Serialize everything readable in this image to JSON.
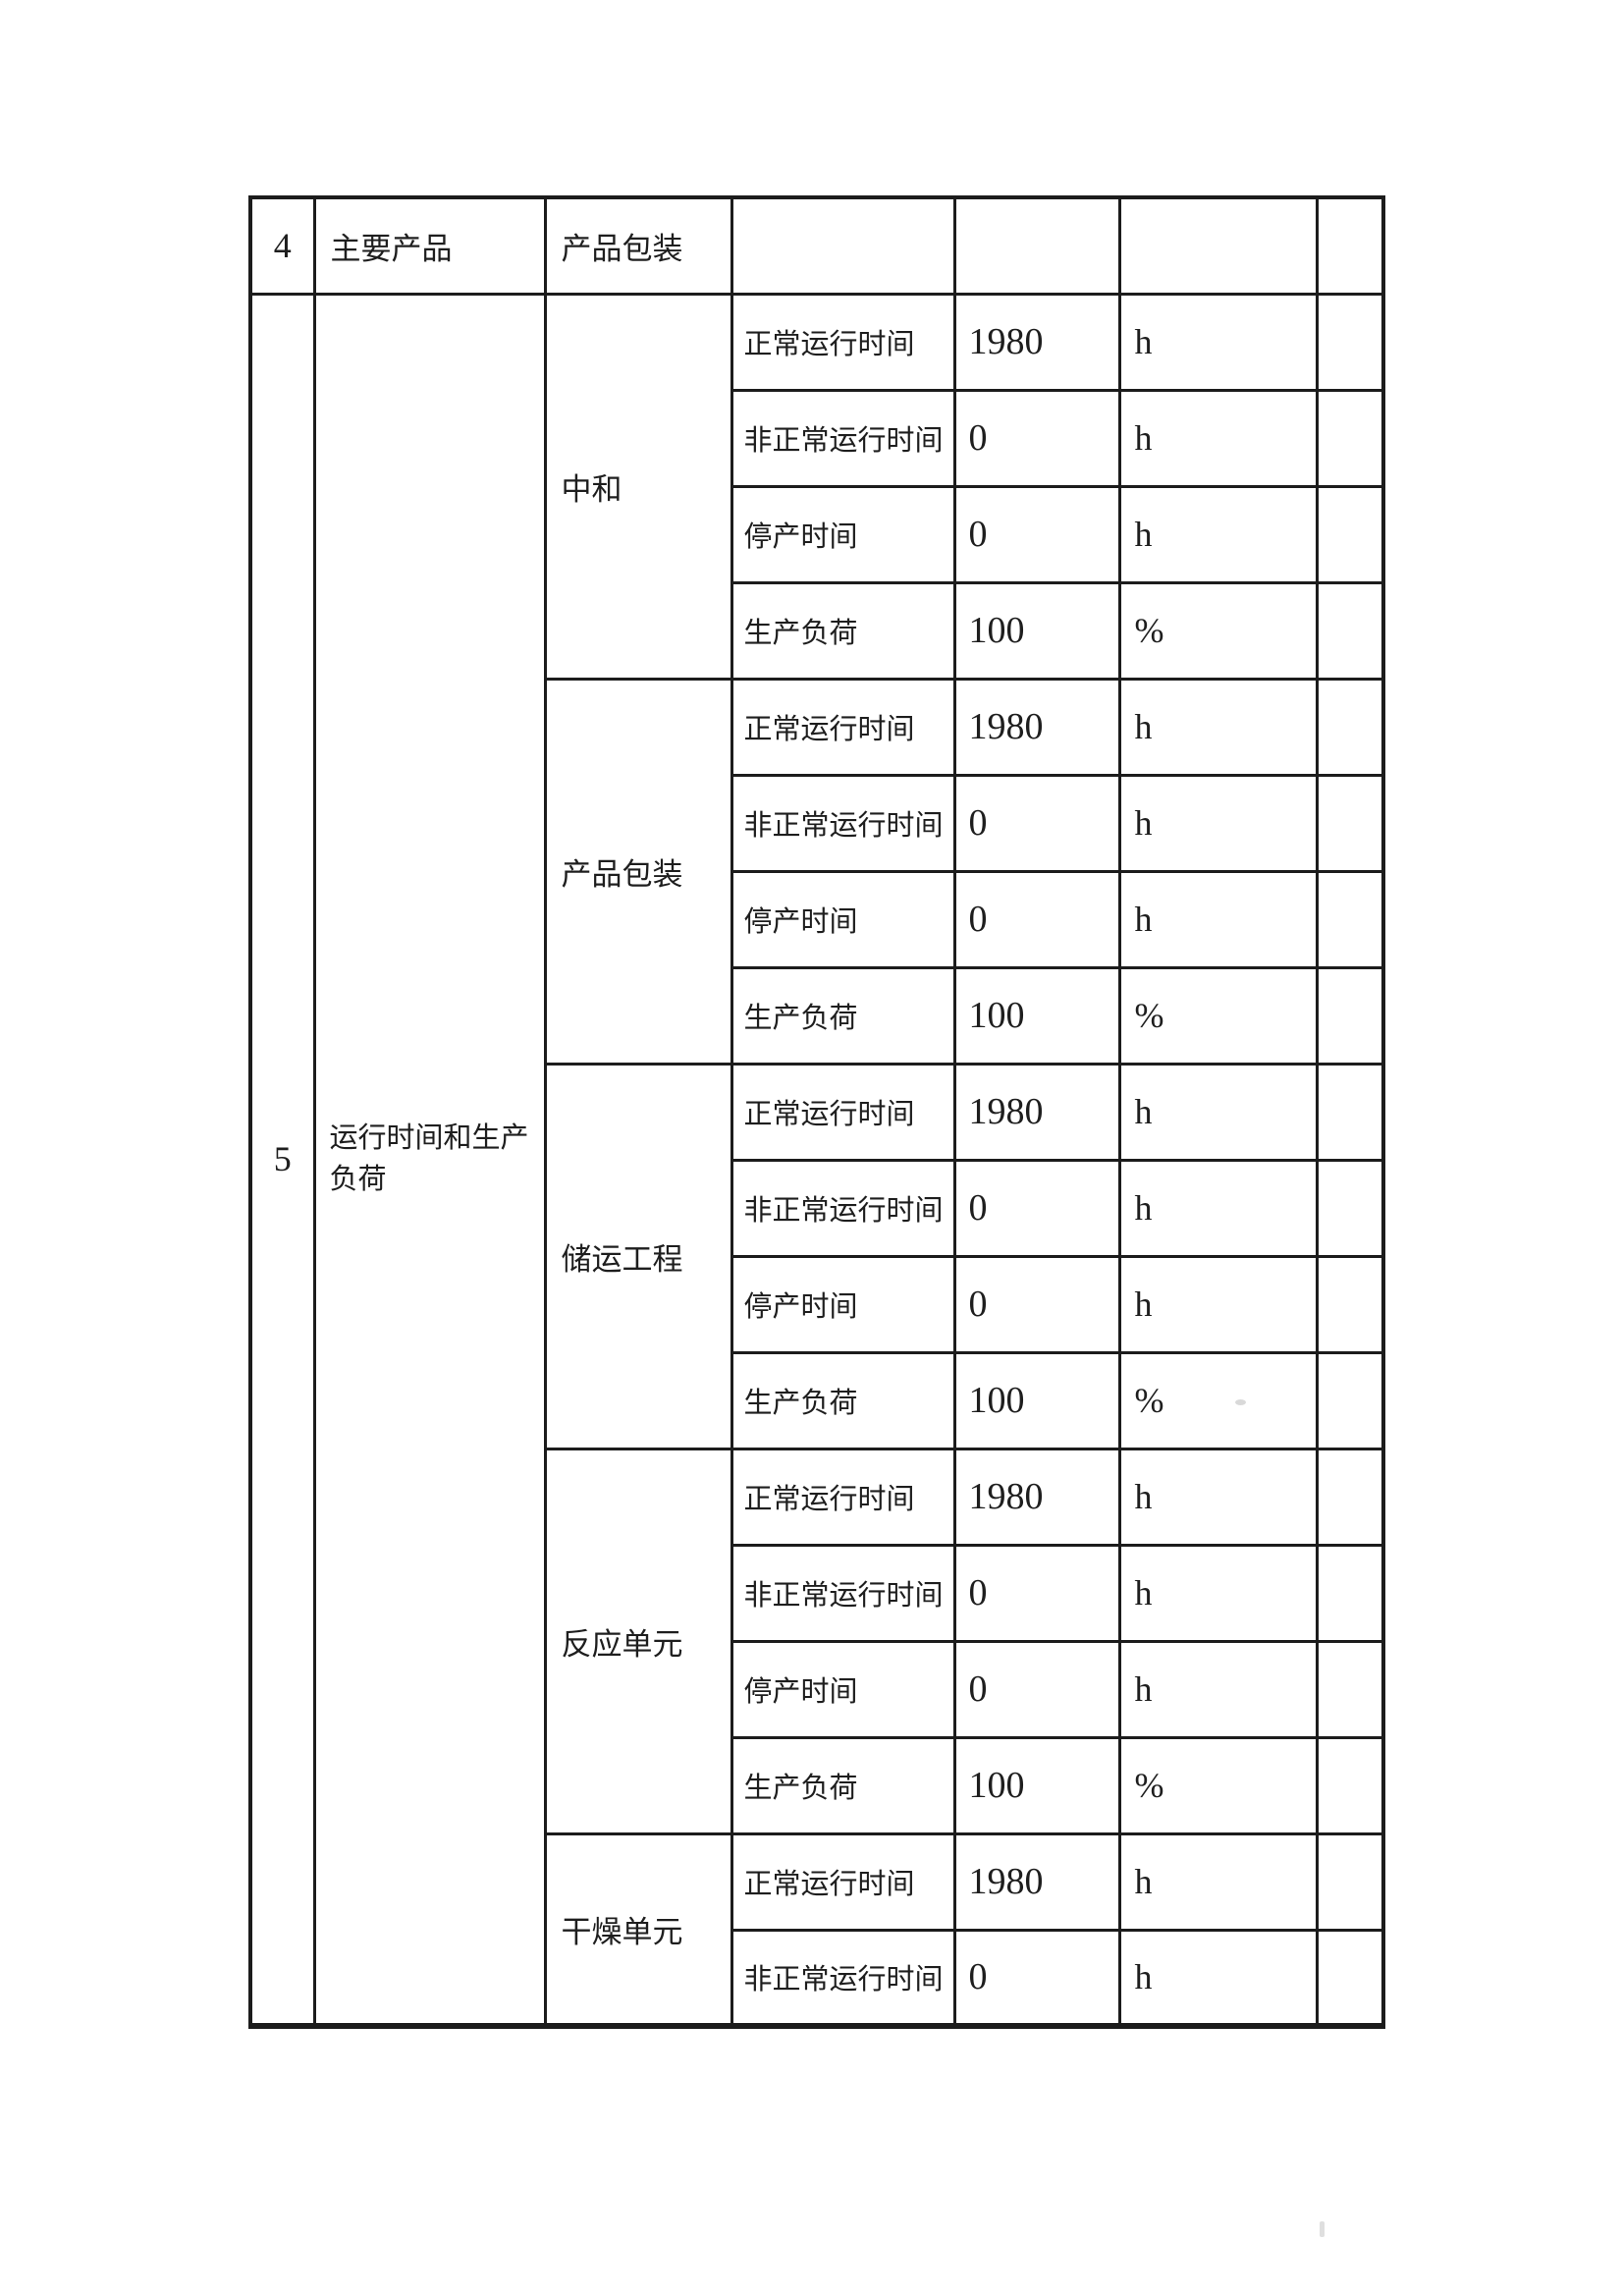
{
  "colors": {
    "page_background": "#ffffff",
    "ink": "#1e1e1e",
    "table_border": "#1c1c1c"
  },
  "table": {
    "row4": {
      "no": "4",
      "category": "主要产品",
      "item": "产品包装",
      "value": "",
      "unit": "",
      "note": ""
    },
    "section5": {
      "no": "5",
      "category": "运行时间和生产负荷",
      "groups": [
        {
          "unit_name": "中和",
          "rows": [
            {
              "metric": "正常运行时间",
              "value": "1980",
              "unit": "h"
            },
            {
              "metric": "非正常运行时间",
              "value": "0",
              "unit": "h"
            },
            {
              "metric": "停产时间",
              "value": "0",
              "unit": "h"
            },
            {
              "metric": "生产负荷",
              "value": "100",
              "unit": "%"
            }
          ]
        },
        {
          "unit_name": "产品包装",
          "rows": [
            {
              "metric": "正常运行时间",
              "value": "1980",
              "unit": "h"
            },
            {
              "metric": "非正常运行时间",
              "value": "0",
              "unit": "h"
            },
            {
              "metric": "停产时间",
              "value": "0",
              "unit": "h"
            },
            {
              "metric": "生产负荷",
              "value": "100",
              "unit": "%"
            }
          ]
        },
        {
          "unit_name": "储运工程",
          "rows": [
            {
              "metric": "正常运行时间",
              "value": "1980",
              "unit": "h"
            },
            {
              "metric": "非正常运行时间",
              "value": "0",
              "unit": "h"
            },
            {
              "metric": "停产时间",
              "value": "0",
              "unit": "h"
            },
            {
              "metric": "生产负荷",
              "value": "100",
              "unit": "%"
            }
          ]
        },
        {
          "unit_name": "反应单元",
          "rows": [
            {
              "metric": "正常运行时间",
              "value": "1980",
              "unit": "h"
            },
            {
              "metric": "非正常运行时间",
              "value": "0",
              "unit": "h"
            },
            {
              "metric": "停产时间",
              "value": "0",
              "unit": "h"
            },
            {
              "metric": "生产负荷",
              "value": "100",
              "unit": "%"
            }
          ]
        },
        {
          "unit_name": "干燥单元",
          "rows": [
            {
              "metric": "正常运行时间",
              "value": "1980",
              "unit": "h"
            },
            {
              "metric": "非正常运行时间",
              "value": "0",
              "unit": "h"
            }
          ]
        }
      ]
    }
  }
}
